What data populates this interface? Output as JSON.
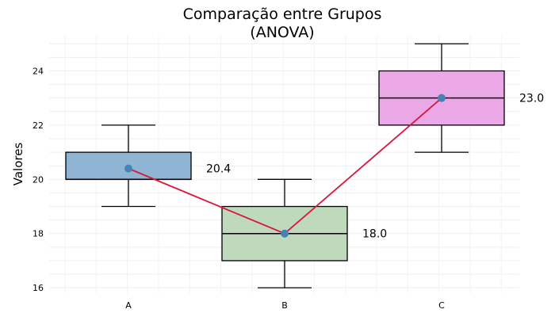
{
  "chart_data": {
    "type": "box",
    "title_lines": [
      "Comparação entre Grupos",
      "(ANOVA)"
    ],
    "xlabel": "",
    "ylabel": "Valores",
    "categories": [
      "A",
      "B",
      "C"
    ],
    "ylim": [
      15.8,
      25.3
    ],
    "yticks": [
      16,
      18,
      20,
      22,
      24
    ],
    "yticks_labels": [
      "16",
      "18",
      "20",
      "22",
      "24"
    ],
    "boxes": [
      {
        "group": "A",
        "min": 19,
        "q1": 20,
        "median": 20,
        "q3": 21,
        "max": 22,
        "color": "#8fb4d4"
      },
      {
        "group": "B",
        "min": 16,
        "q1": 17,
        "median": 18,
        "q3": 19,
        "max": 20,
        "color": "#bfd9bc"
      },
      {
        "group": "C",
        "min": 21,
        "q1": 22,
        "median": 23,
        "q3": 24,
        "max": 25,
        "color": "#eaa8e6"
      }
    ],
    "means": [
      20.4,
      18.0,
      23.0
    ],
    "mean_labels": [
      "20.4",
      "18.0",
      "23.0"
    ],
    "mean_line_color": "#dc143c",
    "mean_point_color": "#4682b4",
    "grid": true,
    "legend": "none"
  }
}
